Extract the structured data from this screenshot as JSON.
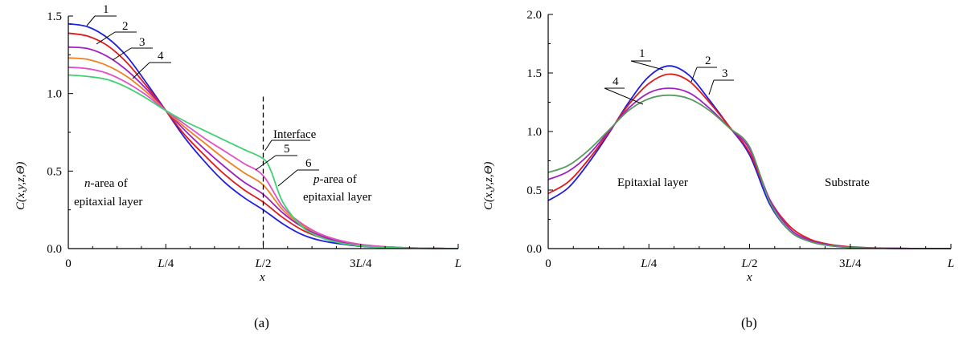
{
  "chart_data": [
    {
      "panel_label": "(a)",
      "type": "line",
      "xlabel": "x",
      "ylabel": "C(x,y,z,Θ)",
      "x_ticks": [
        "0",
        "L/4",
        "L/2",
        "3L/4",
        "L"
      ],
      "y_ticks": [
        "0.0",
        "0.5",
        "1.0",
        "1.5"
      ],
      "xlim": [
        0,
        1
      ],
      "ylim": [
        0,
        1.5
      ],
      "interface_x": 0.5,
      "annotations": {
        "interface": "Interface",
        "n_area": [
          "n-area of",
          "epitaxial layer"
        ],
        "p_area": [
          "p-area of",
          "epitaxial layer"
        ]
      },
      "curve_labels": [
        "1",
        "2",
        "3",
        "4",
        "5",
        "6"
      ],
      "series": [
        {
          "color": "#1f1fe0",
          "values": [
            [
              0,
              1.45
            ],
            [
              0.05,
              1.43
            ],
            [
              0.1,
              1.36
            ],
            [
              0.15,
              1.24
            ],
            [
              0.2,
              1.07
            ],
            [
              0.25,
              0.89
            ],
            [
              0.3,
              0.71
            ],
            [
              0.35,
              0.56
            ],
            [
              0.4,
              0.43
            ],
            [
              0.45,
              0.33
            ],
            [
              0.5,
              0.25
            ],
            [
              0.55,
              0.16
            ],
            [
              0.6,
              0.09
            ],
            [
              0.65,
              0.05
            ],
            [
              0.7,
              0.03
            ],
            [
              0.75,
              0.015
            ],
            [
              0.8,
              0.008
            ],
            [
              0.85,
              0.004
            ],
            [
              0.9,
              0.002
            ],
            [
              0.95,
              0.001
            ],
            [
              1,
              0.0
            ]
          ]
        },
        {
          "color": "#e01b1b",
          "values": [
            [
              0,
              1.39
            ],
            [
              0.05,
              1.37
            ],
            [
              0.1,
              1.31
            ],
            [
              0.15,
              1.2
            ],
            [
              0.2,
              1.05
            ],
            [
              0.25,
              0.89
            ],
            [
              0.3,
              0.73
            ],
            [
              0.35,
              0.6
            ],
            [
              0.4,
              0.48
            ],
            [
              0.45,
              0.38
            ],
            [
              0.5,
              0.3
            ],
            [
              0.55,
              0.2
            ],
            [
              0.6,
              0.12
            ],
            [
              0.65,
              0.07
            ],
            [
              0.7,
              0.04
            ],
            [
              0.75,
              0.02
            ],
            [
              0.8,
              0.011
            ],
            [
              0.85,
              0.006
            ],
            [
              0.9,
              0.003
            ],
            [
              0.95,
              0.001
            ],
            [
              1,
              0.0
            ]
          ]
        },
        {
          "color": "#a020c0",
          "values": [
            [
              0,
              1.3
            ],
            [
              0.05,
              1.29
            ],
            [
              0.1,
              1.24
            ],
            [
              0.15,
              1.15
            ],
            [
              0.2,
              1.03
            ],
            [
              0.25,
              0.89
            ],
            [
              0.3,
              0.76
            ],
            [
              0.35,
              0.64
            ],
            [
              0.4,
              0.53
            ],
            [
              0.45,
              0.43
            ],
            [
              0.5,
              0.35
            ],
            [
              0.55,
              0.23
            ],
            [
              0.6,
              0.14
            ],
            [
              0.65,
              0.08
            ],
            [
              0.7,
              0.045
            ],
            [
              0.75,
              0.024
            ],
            [
              0.8,
              0.013
            ],
            [
              0.85,
              0.007
            ],
            [
              0.9,
              0.003
            ],
            [
              0.95,
              0.001
            ],
            [
              1,
              0.0
            ]
          ]
        },
        {
          "color": "#f08020",
          "values": [
            [
              0,
              1.23
            ],
            [
              0.05,
              1.22
            ],
            [
              0.1,
              1.18
            ],
            [
              0.15,
              1.11
            ],
            [
              0.2,
              1.01
            ],
            [
              0.25,
              0.89
            ],
            [
              0.3,
              0.78
            ],
            [
              0.35,
              0.68
            ],
            [
              0.4,
              0.58
            ],
            [
              0.45,
              0.49
            ],
            [
              0.5,
              0.41
            ],
            [
              0.55,
              0.25
            ],
            [
              0.6,
              0.15
            ],
            [
              0.65,
              0.09
            ],
            [
              0.7,
              0.05
            ],
            [
              0.75,
              0.026
            ],
            [
              0.8,
              0.014
            ],
            [
              0.85,
              0.007
            ],
            [
              0.9,
              0.003
            ],
            [
              0.95,
              0.001
            ],
            [
              1,
              0.0
            ]
          ]
        },
        {
          "color": "#e050c8",
          "values": [
            [
              0,
              1.17
            ],
            [
              0.05,
              1.16
            ],
            [
              0.1,
              1.13
            ],
            [
              0.15,
              1.07
            ],
            [
              0.2,
              0.99
            ],
            [
              0.25,
              0.89
            ],
            [
              0.3,
              0.8
            ],
            [
              0.35,
              0.71
            ],
            [
              0.4,
              0.63
            ],
            [
              0.45,
              0.55
            ],
            [
              0.5,
              0.47
            ],
            [
              0.55,
              0.27
            ],
            [
              0.6,
              0.16
            ],
            [
              0.65,
              0.09
            ],
            [
              0.7,
              0.05
            ],
            [
              0.75,
              0.027
            ],
            [
              0.8,
              0.014
            ],
            [
              0.85,
              0.007
            ],
            [
              0.9,
              0.003
            ],
            [
              0.95,
              0.001
            ],
            [
              1,
              0.0
            ]
          ]
        },
        {
          "color": "#40d070",
          "values": [
            [
              0,
              1.12
            ],
            [
              0.05,
              1.11
            ],
            [
              0.1,
              1.09
            ],
            [
              0.15,
              1.04
            ],
            [
              0.2,
              0.97
            ],
            [
              0.25,
              0.89
            ],
            [
              0.3,
              0.82
            ],
            [
              0.35,
              0.76
            ],
            [
              0.4,
              0.7
            ],
            [
              0.45,
              0.64
            ],
            [
              0.5,
              0.58
            ],
            [
              0.52,
              0.5
            ],
            [
              0.55,
              0.3
            ],
            [
              0.6,
              0.14
            ],
            [
              0.65,
              0.07
            ],
            [
              0.7,
              0.035
            ],
            [
              0.75,
              0.017
            ],
            [
              0.8,
              0.008
            ],
            [
              0.85,
              0.004
            ],
            [
              0.9,
              0.002
            ],
            [
              0.95,
              0.001
            ],
            [
              1,
              0.0
            ]
          ]
        }
      ]
    },
    {
      "panel_label": "(b)",
      "type": "line",
      "xlabel": "x",
      "ylabel": "C(x,y,z,Θ)",
      "x_ticks": [
        "0",
        "L/4",
        "L/2",
        "3L/4",
        "L"
      ],
      "y_ticks": [
        "0.0",
        "0.5",
        "1.0",
        "1.5",
        "2.0"
      ],
      "xlim": [
        0,
        1
      ],
      "ylim": [
        0,
        2.0
      ],
      "annotations": {
        "epitaxial": "Epitaxial layer",
        "substrate": "Substrate"
      },
      "curve_labels": [
        "1",
        "2",
        "3",
        "4"
      ],
      "series": [
        {
          "color": "#1f1fe0",
          "values": [
            [
              0,
              0.41
            ],
            [
              0.05,
              0.52
            ],
            [
              0.1,
              0.73
            ],
            [
              0.15,
              0.98
            ],
            [
              0.2,
              1.25
            ],
            [
              0.25,
              1.47
            ],
            [
              0.3,
              1.56
            ],
            [
              0.35,
              1.48
            ],
            [
              0.4,
              1.27
            ],
            [
              0.45,
              1.04
            ],
            [
              0.5,
              0.8
            ],
            [
              0.55,
              0.38
            ],
            [
              0.6,
              0.15
            ],
            [
              0.65,
              0.06
            ],
            [
              0.7,
              0.025
            ],
            [
              0.75,
              0.01
            ],
            [
              0.8,
              0.005
            ],
            [
              0.85,
              0.002
            ],
            [
              0.9,
              0.001
            ],
            [
              0.95,
              0.0
            ],
            [
              1,
              0.0
            ]
          ]
        },
        {
          "color": "#e01b1b",
          "values": [
            [
              0,
              0.47
            ],
            [
              0.05,
              0.57
            ],
            [
              0.1,
              0.76
            ],
            [
              0.15,
              0.99
            ],
            [
              0.2,
              1.23
            ],
            [
              0.25,
              1.41
            ],
            [
              0.3,
              1.49
            ],
            [
              0.35,
              1.43
            ],
            [
              0.4,
              1.25
            ],
            [
              0.45,
              1.04
            ],
            [
              0.5,
              0.82
            ],
            [
              0.55,
              0.42
            ],
            [
              0.6,
              0.19
            ],
            [
              0.65,
              0.08
            ],
            [
              0.7,
              0.035
            ],
            [
              0.75,
              0.015
            ],
            [
              0.8,
              0.007
            ],
            [
              0.85,
              0.003
            ],
            [
              0.9,
              0.001
            ],
            [
              0.95,
              0.0
            ],
            [
              1,
              0.0
            ]
          ]
        },
        {
          "color": "#a020c0",
          "values": [
            [
              0,
              0.59
            ],
            [
              0.05,
              0.66
            ],
            [
              0.1,
              0.8
            ],
            [
              0.15,
              1.0
            ],
            [
              0.2,
              1.2
            ],
            [
              0.25,
              1.33
            ],
            [
              0.3,
              1.37
            ],
            [
              0.35,
              1.33
            ],
            [
              0.4,
              1.2
            ],
            [
              0.45,
              1.03
            ],
            [
              0.5,
              0.85
            ],
            [
              0.55,
              0.42
            ],
            [
              0.6,
              0.17
            ],
            [
              0.65,
              0.07
            ],
            [
              0.7,
              0.03
            ],
            [
              0.75,
              0.012
            ],
            [
              0.8,
              0.005
            ],
            [
              0.85,
              0.002
            ],
            [
              0.9,
              0.001
            ],
            [
              0.95,
              0.0
            ],
            [
              1,
              0.0
            ]
          ]
        },
        {
          "color": "#5a9a60",
          "values": [
            [
              0,
              0.65
            ],
            [
              0.05,
              0.71
            ],
            [
              0.1,
              0.84
            ],
            [
              0.15,
              1.01
            ],
            [
              0.2,
              1.18
            ],
            [
              0.25,
              1.28
            ],
            [
              0.3,
              1.31
            ],
            [
              0.35,
              1.28
            ],
            [
              0.4,
              1.18
            ],
            [
              0.45,
              1.03
            ],
            [
              0.5,
              0.87
            ],
            [
              0.55,
              0.4
            ],
            [
              0.6,
              0.15
            ],
            [
              0.65,
              0.06
            ],
            [
              0.7,
              0.025
            ],
            [
              0.75,
              0.01
            ],
            [
              0.8,
              0.004
            ],
            [
              0.85,
              0.002
            ],
            [
              0.9,
              0.001
            ],
            [
              0.95,
              0.0
            ],
            [
              1,
              0.0
            ]
          ]
        }
      ]
    }
  ]
}
